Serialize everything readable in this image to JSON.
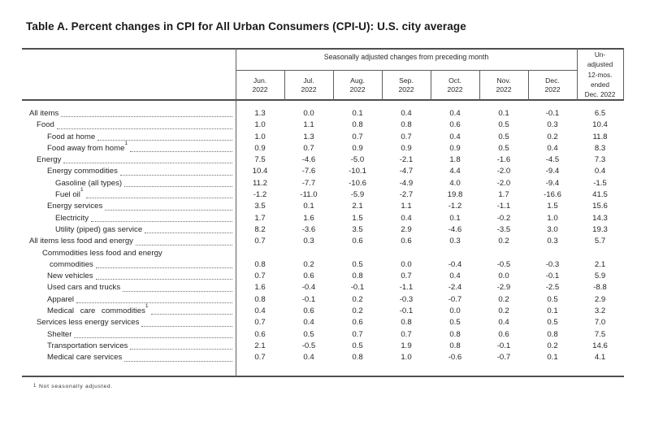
{
  "title": "Table A. Percent changes in CPI for All Urban Consumers (CPI-U): U.S. city average",
  "header": {
    "spanner": "Seasonally adjusted changes from preceding month",
    "months": [
      {
        "label": "Jun.",
        "year": "2022"
      },
      {
        "label": "Jul.",
        "year": "2022"
      },
      {
        "label": "Aug.",
        "year": "2022"
      },
      {
        "label": "Sep.",
        "year": "2022"
      },
      {
        "label": "Oct.",
        "year": "2022"
      },
      {
        "label": "Nov.",
        "year": "2022"
      },
      {
        "label": "Dec.",
        "year": "2022"
      }
    ],
    "unadjusted_lines": [
      "Un-",
      "adjusted",
      "12-mos.",
      "ended",
      "Dec. 2022"
    ]
  },
  "rows": [
    {
      "label": "All items",
      "indent": 0,
      "values": [
        "1.3",
        "0.0",
        "0.1",
        "0.4",
        "0.4",
        "0.1",
        "-0.1",
        "6.5"
      ]
    },
    {
      "label": "Food",
      "indent": 1,
      "values": [
        "1.0",
        "1.1",
        "0.8",
        "0.8",
        "0.6",
        "0.5",
        "0.3",
        "10.4"
      ]
    },
    {
      "label": "Food at home",
      "indent": 2,
      "values": [
        "1.0",
        "1.3",
        "0.7",
        "0.7",
        "0.4",
        "0.5",
        "0.2",
        "11.8"
      ]
    },
    {
      "label": "Food away from home",
      "sup": "1",
      "indent": 2,
      "values": [
        "0.9",
        "0.7",
        "0.9",
        "0.9",
        "0.9",
        "0.5",
        "0.4",
        "8.3"
      ]
    },
    {
      "label": "Energy",
      "indent": 1,
      "values": [
        "7.5",
        "-4.6",
        "-5.0",
        "-2.1",
        "1.8",
        "-1.6",
        "-4.5",
        "7.3"
      ]
    },
    {
      "label": "Energy commodities",
      "indent": 2,
      "values": [
        "10.4",
        "-7.6",
        "-10.1",
        "-4.7",
        "4.4",
        "-2.0",
        "-9.4",
        "0.4"
      ]
    },
    {
      "label": "Gasoline (all types)",
      "indent": 3,
      "values": [
        "11.2",
        "-7.7",
        "-10.6",
        "-4.9",
        "4.0",
        "-2.0",
        "-9.4",
        "-1.5"
      ]
    },
    {
      "label": "Fuel oil",
      "sup": "1",
      "indent": 3,
      "values": [
        "-1.2",
        "-11.0",
        "-5.9",
        "-2.7",
        "19.8",
        "1.7",
        "-16.6",
        "41.5"
      ]
    },
    {
      "label": "Energy services",
      "indent": 2,
      "values": [
        "3.5",
        "0.1",
        "2.1",
        "1.1",
        "-1.2",
        "-1.1",
        "1.5",
        "15.6"
      ]
    },
    {
      "label": "Electricity",
      "indent": 3,
      "values": [
        "1.7",
        "1.6",
        "1.5",
        "0.4",
        "0.1",
        "-0.2",
        "1.0",
        "14.3"
      ]
    },
    {
      "label": "Utility (piped) gas service",
      "indent": 3,
      "values": [
        "8.2",
        "-3.6",
        "3.5",
        "2.9",
        "-4.6",
        "-3.5",
        "3.0",
        "19.3"
      ]
    },
    {
      "label": "All items less food and energy",
      "indent": 0,
      "values": [
        "0.7",
        "0.3",
        "0.6",
        "0.6",
        "0.3",
        "0.2",
        "0.3",
        "5.7"
      ]
    },
    {
      "label_lines": [
        "Commodities less food and energy",
        "commodities"
      ],
      "indent": 1,
      "values": [
        "0.8",
        "0.2",
        "0.5",
        "0.0",
        "-0.4",
        "-0.5",
        "-0.3",
        "2.1"
      ]
    },
    {
      "label": "New vehicles",
      "indent": 2,
      "values": [
        "0.7",
        "0.6",
        "0.8",
        "0.7",
        "0.4",
        "0.0",
        "-0.1",
        "5.9"
      ]
    },
    {
      "label": "Used cars and trucks",
      "indent": 2,
      "values": [
        "1.6",
        "-0.4",
        "-0.1",
        "-1.1",
        "-2.4",
        "-2.9",
        "-2.5",
        "-8.8"
      ]
    },
    {
      "label": "Apparel",
      "indent": 2,
      "values": [
        "0.8",
        "-0.1",
        "0.2",
        "-0.3",
        "-0.7",
        "0.2",
        "0.5",
        "2.9"
      ]
    },
    {
      "label": "Medical care commodities",
      "sup": "1",
      "indent": 2,
      "spread": true,
      "values": [
        "0.4",
        "0.6",
        "0.2",
        "-0.1",
        "0.0",
        "0.2",
        "0.1",
        "3.2"
      ]
    },
    {
      "label": "Services less energy services",
      "indent": 1,
      "values": [
        "0.7",
        "0.4",
        "0.6",
        "0.8",
        "0.5",
        "0.4",
        "0.5",
        "7.0"
      ]
    },
    {
      "label": "Shelter",
      "indent": 2,
      "values": [
        "0.6",
        "0.5",
        "0.7",
        "0.7",
        "0.8",
        "0.6",
        "0.8",
        "7.5"
      ]
    },
    {
      "label": "Transportation services",
      "indent": 2,
      "values": [
        "2.1",
        "-0.5",
        "0.5",
        "1.9",
        "0.8",
        "-0.1",
        "0.2",
        "14.6"
      ]
    },
    {
      "label": "Medical care services",
      "indent": 2,
      "values": [
        "0.7",
        "0.4",
        "0.8",
        "1.0",
        "-0.6",
        "-0.7",
        "0.1",
        "4.1"
      ]
    }
  ],
  "footnote": {
    "marker": "1",
    "text": "Not seasonally adjusted."
  },
  "colors": {
    "rule": "#4f4f4f",
    "text": "#262626"
  }
}
